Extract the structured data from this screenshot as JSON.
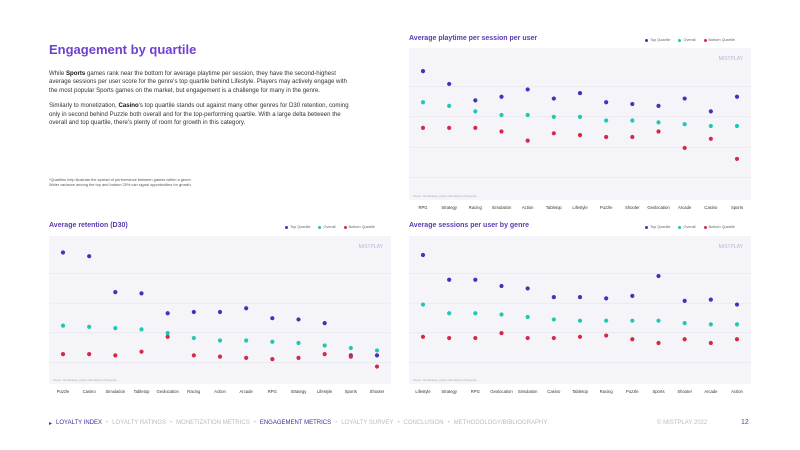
{
  "page": {
    "title": "Engagement by quartile",
    "paragraph1": {
      "pre1": "While ",
      "bold1": "Sports",
      "post1": " games rank near the bottom for average playtime per session, they have the second-highest average sessions per user score for the genre's top quartile behind Lifestyle. Players may actively engage with the most popular Sports games on the market, but engagement is a challenge for many in the genre."
    },
    "paragraph2": {
      "pre1": "Similarly to monetization, ",
      "bold1": "Casino",
      "post1": "'s top quartile stands out against many other genres for D30 retention, coming only in second behind Puzzle both overall and for the top-performing quartile. With a large delta between the overall and top quartile, there's plenty of room for growth in this category."
    },
    "footnote1": "*Quartiles help illustrate the spread of performance between games within a genre.",
    "footnote2": "Wider variance among the top and bottom 25% can signal opportunities for growth.",
    "watermark": "MISTPLAY",
    "source": "Source: The Mistplay Loyalty Index Report of all genres"
  },
  "legend": {
    "top": "Top Quartile",
    "overall": "Overall",
    "bottom": "Bottom Quartile"
  },
  "colors": {
    "top": "#4a2fb8",
    "overall": "#1ec8b4",
    "bottom": "#d6294a",
    "grid": "#e4e4ec",
    "panel": "#f5f5f9"
  },
  "nav": {
    "items": [
      "LOYALTY INDEX",
      "LOYALTY RATINGS",
      "MONETIZATION METRICS",
      "ENGAGEMENT METRICS",
      "LOYALTY SURVEY",
      "CONCLUSION",
      "METHODOLOGY/BIBLIOGRAPHY"
    ],
    "copyright": "© MISTPLAY 2022",
    "page": "12"
  },
  "chart_data": [
    {
      "type": "scatter",
      "title": "Average playtime per session per user",
      "categories": [
        "RPG",
        "Strategy",
        "Racing",
        "Simulation",
        "Action",
        "Tabletop",
        "Lifestyle",
        "Puzzle",
        "Shooter",
        "Geolocation",
        "Arcade",
        "Casino",
        "Sports"
      ],
      "ylim": [
        0,
        7
      ],
      "series": [
        {
          "name": "Top Quartile",
          "values": [
            6.5,
            5.8,
            4.9,
            5.1,
            5.5,
            5.0,
            5.3,
            4.8,
            4.7,
            4.6,
            5.0,
            4.3,
            5.1
          ]
        },
        {
          "name": "Overall",
          "values": [
            4.8,
            4.6,
            4.3,
            4.1,
            4.1,
            4.0,
            4.0,
            3.8,
            3.8,
            3.7,
            3.6,
            3.5,
            3.5
          ]
        },
        {
          "name": "Bottom Quartile",
          "values": [
            3.4,
            3.4,
            3.4,
            3.2,
            2.7,
            3.1,
            3.0,
            2.9,
            2.9,
            3.2,
            2.3,
            2.8,
            1.7
          ]
        }
      ]
    },
    {
      "type": "scatter",
      "title": "Average retention (D30)",
      "categories": [
        "Puzzle",
        "Casino",
        "Simulation",
        "Tabletop",
        "Geolocation",
        "Racing",
        "Action",
        "Arcade",
        "RPG",
        "Strategy",
        "Lifestyle",
        "Sports",
        "Shooter"
      ],
      "ylim": [
        0,
        10
      ],
      "series": [
        {
          "name": "Top Quartile",
          "values": [
            9.8,
            9.5,
            6.6,
            6.5,
            4.9,
            5.0,
            5.0,
            5.3,
            4.5,
            4.4,
            4.1,
            1.5,
            1.5
          ]
        },
        {
          "name": "Overall",
          "values": [
            3.9,
            3.8,
            3.7,
            3.6,
            3.3,
            2.9,
            2.7,
            2.7,
            2.6,
            2.5,
            2.3,
            2.1,
            1.9
          ]
        },
        {
          "name": "Bottom Quartile",
          "values": [
            1.6,
            1.6,
            1.5,
            1.8,
            3.0,
            1.5,
            1.4,
            1.3,
            1.2,
            1.3,
            1.6,
            1.4,
            0.6
          ]
        }
      ]
    },
    {
      "type": "scatter",
      "title": "Average sessions per user by genre",
      "categories": [
        "Lifestyle",
        "Strategy",
        "RPG",
        "Geolocation",
        "Simulation",
        "Casino",
        "Tabletop",
        "Racing",
        "Puzzle",
        "Sports",
        "Shooter",
        "Arcade",
        "Action"
      ],
      "ylim": [
        0,
        10
      ],
      "series": [
        {
          "name": "Top Quartile",
          "values": [
            9.6,
            7.6,
            7.6,
            7.1,
            6.9,
            6.2,
            6.2,
            6.1,
            6.3,
            7.9,
            5.9,
            6.0,
            5.6
          ]
        },
        {
          "name": "Overall",
          "values": [
            5.6,
            4.9,
            4.9,
            4.8,
            4.6,
            4.4,
            4.3,
            4.3,
            4.3,
            4.3,
            4.1,
            4.0,
            4.0
          ]
        },
        {
          "name": "Bottom Quartile",
          "values": [
            3.0,
            2.9,
            2.9,
            3.3,
            2.9,
            2.9,
            3.0,
            3.1,
            2.8,
            2.5,
            2.8,
            2.5,
            2.8
          ]
        }
      ]
    }
  ]
}
